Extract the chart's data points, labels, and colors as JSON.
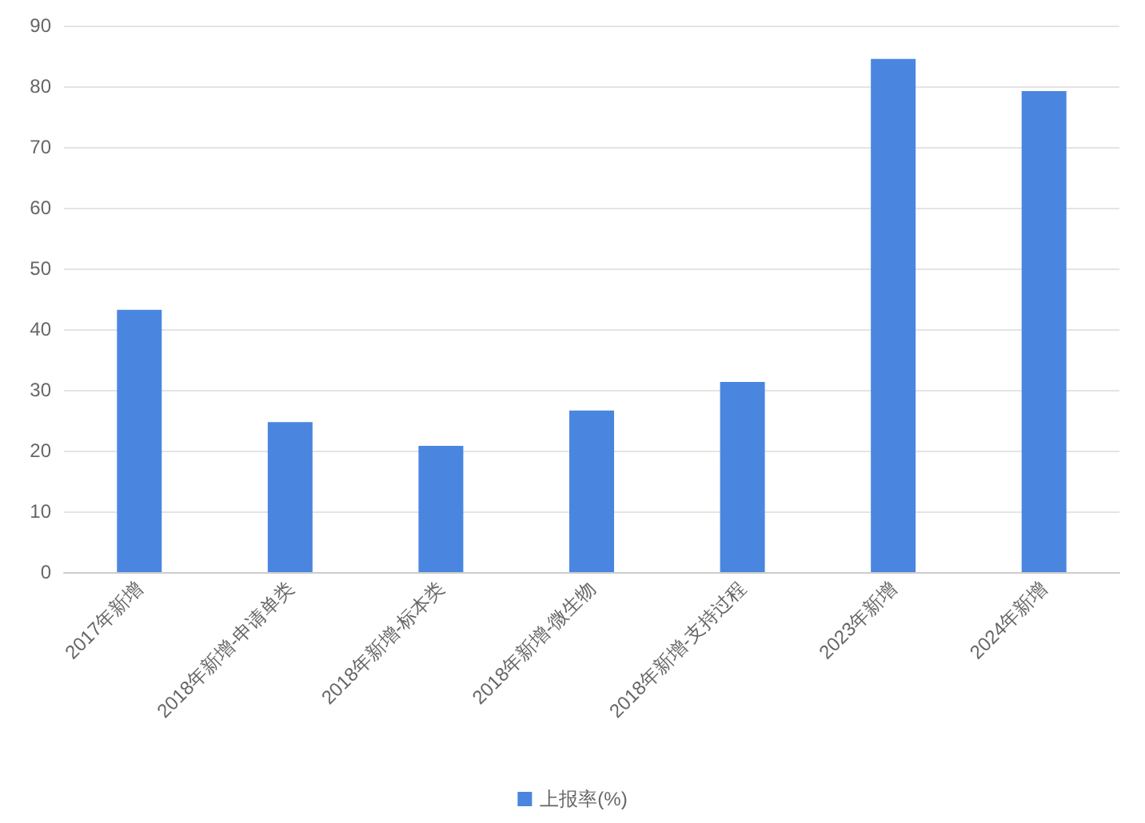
{
  "chart_data": {
    "type": "bar",
    "categories": [
      "2017年新增",
      "2018年新增-申请单类",
      "2018年新增-标本类",
      "2018年新增-微生物",
      "2018年新增-支持过程",
      "2023年新增",
      "2024年新增"
    ],
    "series": [
      {
        "name": "上报率(%)",
        "color": "#4a86e0",
        "values": [
          43.2,
          24.7,
          20.8,
          26.6,
          31.3,
          84.5,
          79.2
        ]
      }
    ],
    "ylim": [
      0,
      90
    ],
    "yticks": [
      0,
      10,
      20,
      30,
      40,
      50,
      60,
      70,
      80,
      90
    ],
    "grid": "y",
    "legend": "bottom"
  }
}
